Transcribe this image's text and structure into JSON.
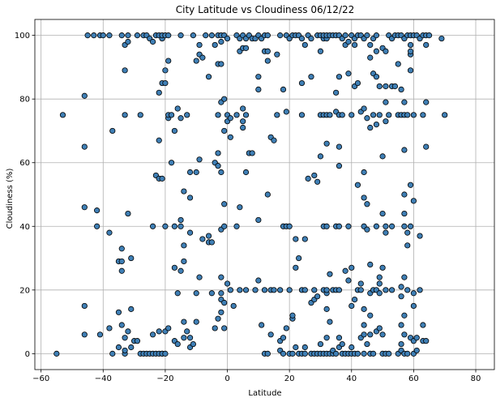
{
  "chart_data": {
    "type": "scatter",
    "title": "City Latitude vs Cloudiness 06/12/22",
    "xlabel": "Latitude",
    "ylabel": "Cloudiness (%)",
    "xlim": [
      -62,
      86
    ],
    "ylim": [
      -5,
      105
    ],
    "xticks": [
      -60,
      -40,
      -20,
      0,
      20,
      40,
      60,
      80
    ],
    "yticks": [
      0,
      20,
      40,
      60,
      80,
      100
    ],
    "grid": true,
    "legend": "none",
    "marker_fill": "#3f7fb5",
    "marker_edge": "#000000",
    "points": [
      [
        -55,
        0
      ],
      [
        -53,
        75
      ],
      [
        -46,
        6
      ],
      [
        -46,
        15
      ],
      [
        -46,
        46
      ],
      [
        -46,
        65
      ],
      [
        -46,
        81
      ],
      [
        -45,
        100
      ],
      [
        -43,
        100
      ],
      [
        -42,
        40
      ],
      [
        -42,
        45
      ],
      [
        -41,
        6
      ],
      [
        -41,
        100
      ],
      [
        -40,
        100
      ],
      [
        -38,
        8
      ],
      [
        -38,
        38
      ],
      [
        -38,
        100
      ],
      [
        -37,
        0
      ],
      [
        -37,
        70
      ],
      [
        -35,
        2
      ],
      [
        -35,
        13
      ],
      [
        -35,
        29
      ],
      [
        -34,
        9
      ],
      [
        -34,
        26
      ],
      [
        -34,
        29
      ],
      [
        -34,
        33
      ],
      [
        -34,
        100
      ],
      [
        -33,
        0
      ],
      [
        -33,
        1
      ],
      [
        -33,
        5
      ],
      [
        -33,
        75
      ],
      [
        -33,
        89
      ],
      [
        -33,
        97
      ],
      [
        -32,
        7
      ],
      [
        -32,
        44
      ],
      [
        -32,
        98
      ],
      [
        -32,
        100
      ],
      [
        -31,
        2
      ],
      [
        -31,
        14
      ],
      [
        -31,
        30
      ],
      [
        -30,
        4
      ],
      [
        -29,
        4
      ],
      [
        -29,
        100
      ],
      [
        -28,
        0
      ],
      [
        -28,
        75
      ],
      [
        -27,
        0
      ],
      [
        -27,
        100
      ],
      [
        -26,
        0
      ],
      [
        -26,
        100
      ],
      [
        -25,
        0
      ],
      [
        -25,
        99
      ],
      [
        -24,
        0
      ],
      [
        -24,
        6
      ],
      [
        -24,
        40
      ],
      [
        -24,
        98
      ],
      [
        -23,
        0
      ],
      [
        -23,
        56
      ],
      [
        -23,
        100
      ],
      [
        -22,
        0
      ],
      [
        -22,
        7
      ],
      [
        -22,
        55
      ],
      [
        -22,
        67
      ],
      [
        -22,
        82
      ],
      [
        -22,
        100
      ],
      [
        -21,
        0
      ],
      [
        -21,
        0
      ],
      [
        -21,
        55
      ],
      [
        -21,
        85
      ],
      [
        -21,
        99
      ],
      [
        -21,
        100
      ],
      [
        -20,
        0
      ],
      [
        -20,
        7
      ],
      [
        -20,
        40
      ],
      [
        -20,
        85
      ],
      [
        -20,
        89
      ],
      [
        -20,
        100
      ],
      [
        -19,
        8
      ],
      [
        -19,
        74
      ],
      [
        -19,
        75
      ],
      [
        -19,
        92
      ],
      [
        -19,
        100
      ],
      [
        -18,
        60
      ],
      [
        -18,
        75
      ],
      [
        -17,
        4
      ],
      [
        -17,
        27
      ],
      [
        -17,
        40
      ],
      [
        -17,
        70
      ],
      [
        -16,
        3
      ],
      [
        -16,
        19
      ],
      [
        -16,
        77
      ],
      [
        -15,
        26
      ],
      [
        -15,
        40
      ],
      [
        -15,
        42
      ],
      [
        -15,
        74
      ],
      [
        -15,
        100
      ],
      [
        -14,
        5
      ],
      [
        -14,
        10
      ],
      [
        -14,
        34
      ],
      [
        -14,
        29
      ],
      [
        -14,
        51
      ],
      [
        -13,
        7
      ],
      [
        -13,
        75
      ],
      [
        -12,
        2
      ],
      [
        -12,
        5
      ],
      [
        -12,
        38
      ],
      [
        -12,
        49
      ],
      [
        -12,
        57
      ],
      [
        -11,
        3
      ],
      [
        -11,
        100
      ],
      [
        -10,
        10
      ],
      [
        -10,
        19
      ],
      [
        -10,
        57
      ],
      [
        -10,
        92
      ],
      [
        -9,
        24
      ],
      [
        -9,
        61
      ],
      [
        -9,
        94
      ],
      [
        -9,
        97
      ],
      [
        -8,
        36
      ],
      [
        -8,
        93
      ],
      [
        -7,
        100
      ],
      [
        -6,
        37
      ],
      [
        -6,
        87
      ],
      [
        -6,
        35
      ],
      [
        -5,
        19
      ],
      [
        -5,
        35
      ],
      [
        -5,
        100
      ],
      [
        -4,
        8
      ],
      [
        -4,
        60
      ],
      [
        -4,
        97
      ],
      [
        -3,
        11
      ],
      [
        -3,
        59
      ],
      [
        -3,
        63
      ],
      [
        -3,
        75
      ],
      [
        -3,
        91
      ],
      [
        -3,
        100
      ],
      [
        -2,
        13
      ],
      [
        -2,
        17
      ],
      [
        -2,
        19
      ],
      [
        -2,
        24
      ],
      [
        -2,
        39
      ],
      [
        -2,
        57
      ],
      [
        -2,
        79
      ],
      [
        -2,
        91
      ],
      [
        -2,
        98
      ],
      [
        -2,
        100
      ],
      [
        -1,
        8
      ],
      [
        -1,
        16
      ],
      [
        -1,
        40
      ],
      [
        -1,
        47
      ],
      [
        -1,
        70
      ],
      [
        -1,
        80
      ],
      [
        -1,
        100
      ],
      [
        0,
        22
      ],
      [
        0,
        73
      ],
      [
        0,
        75
      ],
      [
        0,
        99
      ],
      [
        1,
        20
      ],
      [
        1,
        68
      ],
      [
        1,
        74
      ],
      [
        2,
        15
      ],
      [
        3,
        40
      ],
      [
        3,
        75
      ],
      [
        3,
        100
      ],
      [
        4,
        20
      ],
      [
        4,
        46
      ],
      [
        4,
        95
      ],
      [
        4,
        99
      ],
      [
        5,
        71
      ],
      [
        5,
        73
      ],
      [
        5,
        77
      ],
      [
        5,
        96
      ],
      [
        5,
        100
      ],
      [
        6,
        20
      ],
      [
        6,
        57
      ],
      [
        6,
        75
      ],
      [
        6,
        96
      ],
      [
        6,
        99
      ],
      [
        7,
        63
      ],
      [
        7,
        100
      ],
      [
        8,
        63
      ],
      [
        8,
        99
      ],
      [
        9,
        20
      ],
      [
        9,
        99
      ],
      [
        10,
        23
      ],
      [
        10,
        42
      ],
      [
        10,
        83
      ],
      [
        10,
        87
      ],
      [
        10,
        100
      ],
      [
        11,
        9
      ],
      [
        11,
        99
      ],
      [
        12,
        0
      ],
      [
        12,
        20
      ],
      [
        12,
        95
      ],
      [
        12,
        100
      ],
      [
        13,
        0
      ],
      [
        13,
        50
      ],
      [
        13,
        92
      ],
      [
        13,
        95
      ],
      [
        13,
        100
      ],
      [
        14,
        6
      ],
      [
        14,
        20
      ],
      [
        14,
        68
      ],
      [
        15,
        67
      ],
      [
        15,
        20
      ],
      [
        16,
        75
      ],
      [
        16,
        94
      ],
      [
        17,
        4
      ],
      [
        17,
        20
      ],
      [
        17,
        1
      ],
      [
        17,
        100
      ],
      [
        18,
        0
      ],
      [
        18,
        83
      ],
      [
        18,
        40
      ],
      [
        18,
        5
      ],
      [
        19,
        8
      ],
      [
        19,
        40
      ],
      [
        19,
        76
      ],
      [
        19,
        100
      ],
      [
        20,
        0
      ],
      [
        20,
        20
      ],
      [
        20,
        40
      ],
      [
        20,
        99
      ],
      [
        21,
        0
      ],
      [
        21,
        11
      ],
      [
        21,
        12
      ],
      [
        21,
        100
      ],
      [
        22,
        2
      ],
      [
        22,
        27
      ],
      [
        22,
        36
      ],
      [
        22,
        100
      ],
      [
        23,
        0
      ],
      [
        23,
        30
      ],
      [
        23,
        100
      ],
      [
        24,
        0
      ],
      [
        24,
        20
      ],
      [
        24,
        75
      ],
      [
        24,
        99
      ],
      [
        24,
        85
      ],
      [
        25,
        0
      ],
      [
        25,
        2
      ],
      [
        25,
        20
      ],
      [
        25,
        36
      ],
      [
        25,
        97
      ],
      [
        26,
        55
      ],
      [
        26,
        100
      ],
      [
        27,
        0
      ],
      [
        27,
        16
      ],
      [
        27,
        87
      ],
      [
        27,
        99
      ],
      [
        28,
        0
      ],
      [
        28,
        17
      ],
      [
        28,
        20
      ],
      [
        28,
        56
      ],
      [
        29,
        0
      ],
      [
        29,
        18
      ],
      [
        29,
        54
      ],
      [
        29,
        100
      ],
      [
        30,
        0
      ],
      [
        30,
        3
      ],
      [
        30,
        62
      ],
      [
        30,
        75
      ],
      [
        30,
        95
      ],
      [
        30,
        100
      ],
      [
        31,
        0
      ],
      [
        31,
        20
      ],
      [
        31,
        40
      ],
      [
        31,
        75
      ],
      [
        31,
        99
      ],
      [
        31,
        100
      ],
      [
        32,
        0
      ],
      [
        32,
        5
      ],
      [
        32,
        14
      ],
      [
        32,
        19
      ],
      [
        32,
        20
      ],
      [
        32,
        40
      ],
      [
        32,
        66
      ],
      [
        32,
        75
      ],
      [
        32,
        99
      ],
      [
        32,
        100
      ],
      [
        33,
        0
      ],
      [
        33,
        10
      ],
      [
        33,
        25
      ],
      [
        33,
        75
      ],
      [
        33,
        100
      ],
      [
        34,
        0
      ],
      [
        34,
        1
      ],
      [
        34,
        20
      ],
      [
        34,
        100
      ],
      [
        35,
        0
      ],
      [
        35,
        20
      ],
      [
        35,
        40
      ],
      [
        35,
        76
      ],
      [
        35,
        82
      ],
      [
        35,
        100
      ],
      [
        36,
        2
      ],
      [
        36,
        5
      ],
      [
        36,
        20
      ],
      [
        36,
        40
      ],
      [
        36,
        59
      ],
      [
        36,
        65
      ],
      [
        36,
        75
      ],
      [
        36,
        87
      ],
      [
        36,
        100
      ],
      [
        37,
        0
      ],
      [
        37,
        3
      ],
      [
        37,
        75
      ],
      [
        37,
        99
      ],
      [
        38,
        0
      ],
      [
        38,
        26
      ],
      [
        38,
        97
      ],
      [
        38,
        100
      ],
      [
        39,
        0
      ],
      [
        39,
        23
      ],
      [
        39,
        40
      ],
      [
        39,
        88
      ],
      [
        39,
        98
      ],
      [
        40,
        0
      ],
      [
        40,
        2
      ],
      [
        40,
        15
      ],
      [
        40,
        27
      ],
      [
        40,
        75
      ],
      [
        40,
        100
      ],
      [
        41,
        0
      ],
      [
        41,
        17
      ],
      [
        41,
        84
      ],
      [
        41,
        97
      ],
      [
        41,
        99
      ],
      [
        42,
        0
      ],
      [
        42,
        20
      ],
      [
        42,
        53
      ],
      [
        42,
        85
      ],
      [
        42,
        100
      ],
      [
        43,
        5
      ],
      [
        43,
        20
      ],
      [
        43,
        22
      ],
      [
        43,
        76
      ],
      [
        43,
        100
      ],
      [
        44,
        0
      ],
      [
        44,
        6
      ],
      [
        44,
        9
      ],
      [
        44,
        14
      ],
      [
        44,
        40
      ],
      [
        44,
        49
      ],
      [
        44,
        57
      ],
      [
        44,
        77
      ],
      [
        44,
        99
      ],
      [
        45,
        3
      ],
      [
        45,
        39
      ],
      [
        45,
        47
      ],
      [
        45,
        74
      ],
      [
        45,
        100
      ],
      [
        46,
        0
      ],
      [
        46,
        6
      ],
      [
        46,
        12
      ],
      [
        46,
        19
      ],
      [
        46,
        28
      ],
      [
        46,
        71
      ],
      [
        46,
        93
      ],
      [
        46,
        97
      ],
      [
        47,
        0
      ],
      [
        47,
        20
      ],
      [
        47,
        75
      ],
      [
        47,
        88
      ],
      [
        47,
        99
      ],
      [
        48,
        7
      ],
      [
        48,
        20
      ],
      [
        48,
        40
      ],
      [
        48,
        72
      ],
      [
        48,
        87
      ],
      [
        48,
        95
      ],
      [
        48,
        100
      ],
      [
        49,
        8
      ],
      [
        49,
        19
      ],
      [
        49,
        22
      ],
      [
        49,
        24
      ],
      [
        49,
        75
      ],
      [
        49,
        84
      ],
      [
        50,
        0
      ],
      [
        50,
        6
      ],
      [
        50,
        27
      ],
      [
        50,
        44
      ],
      [
        50,
        62
      ],
      [
        50,
        96
      ],
      [
        51,
        0
      ],
      [
        51,
        20
      ],
      [
        51,
        38
      ],
      [
        51,
        40
      ],
      [
        51,
        73
      ],
      [
        51,
        79
      ],
      [
        51,
        84
      ],
      [
        51,
        95
      ],
      [
        52,
        0
      ],
      [
        52,
        75
      ],
      [
        52,
        100
      ],
      [
        53,
        20
      ],
      [
        53,
        40
      ],
      [
        53,
        84
      ],
      [
        53,
        99
      ],
      [
        54,
        84
      ],
      [
        54,
        100
      ],
      [
        55,
        0
      ],
      [
        55,
        75
      ],
      [
        55,
        91
      ],
      [
        55,
        100
      ],
      [
        56,
        1
      ],
      [
        56,
        3
      ],
      [
        56,
        9
      ],
      [
        56,
        18
      ],
      [
        56,
        21
      ],
      [
        56,
        75
      ],
      [
        56,
        83
      ],
      [
        56,
        100
      ],
      [
        57,
        0
      ],
      [
        57,
        6
      ],
      [
        57,
        12
      ],
      [
        57,
        24
      ],
      [
        57,
        40
      ],
      [
        57,
        44
      ],
      [
        57,
        50
      ],
      [
        57,
        64
      ],
      [
        57,
        75
      ],
      [
        57,
        79
      ],
      [
        57,
        99
      ],
      [
        58,
        0
      ],
      [
        58,
        20
      ],
      [
        58,
        34
      ],
      [
        58,
        38
      ],
      [
        58,
        75
      ],
      [
        58,
        100
      ],
      [
        59,
        5
      ],
      [
        59,
        40
      ],
      [
        59,
        53
      ],
      [
        59,
        89
      ],
      [
        59,
        94
      ],
      [
        59,
        95
      ],
      [
        59,
        97
      ],
      [
        59,
        100
      ],
      [
        60,
        0
      ],
      [
        60,
        4
      ],
      [
        60,
        15
      ],
      [
        60,
        19
      ],
      [
        60,
        48
      ],
      [
        60,
        75
      ],
      [
        60,
        100
      ],
      [
        61,
        1
      ],
      [
        61,
        5
      ],
      [
        61,
        100
      ],
      [
        62,
        20
      ],
      [
        62,
        37
      ],
      [
        62,
        99
      ],
      [
        63,
        4
      ],
      [
        63,
        9
      ],
      [
        63,
        75
      ],
      [
        63,
        100
      ],
      [
        64,
        4
      ],
      [
        64,
        65
      ],
      [
        64,
        79
      ],
      [
        64,
        97
      ],
      [
        64,
        100
      ],
      [
        65,
        100
      ],
      [
        69,
        99
      ],
      [
        70,
        75
      ]
    ]
  }
}
